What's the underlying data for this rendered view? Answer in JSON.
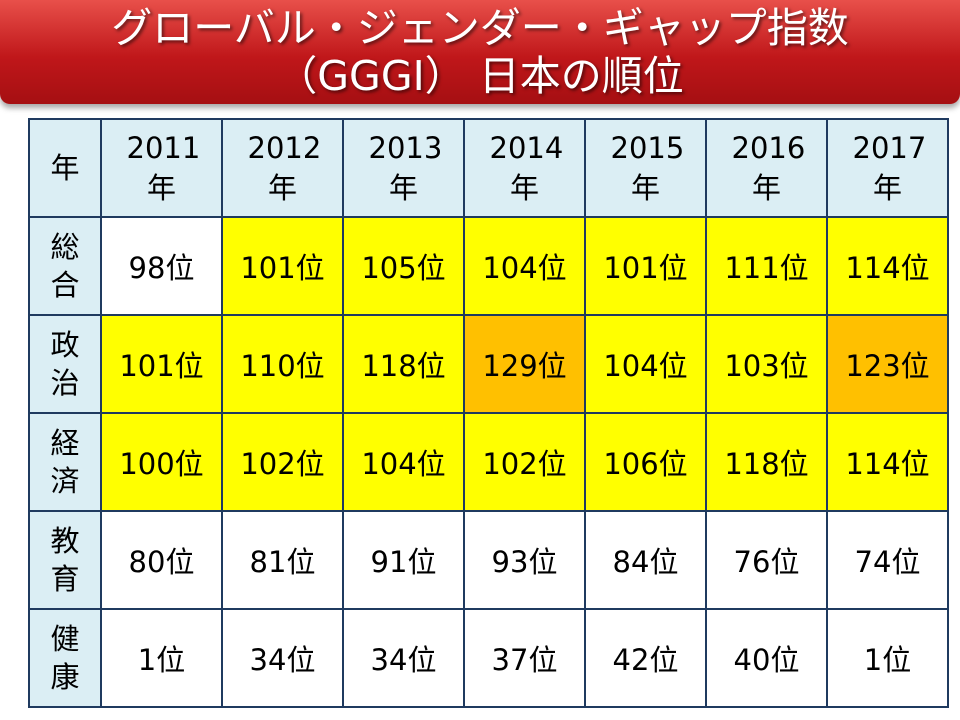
{
  "header": {
    "title_lines": [
      "グローバル・ジェンダー・ギャップ指数",
      "（GGGI） 日本の順位"
    ]
  },
  "table": {
    "header": {
      "label": "年",
      "columns": [
        "2011年",
        "2012年",
        "2013年",
        "2014年",
        "2015年",
        "2016年",
        "2017年"
      ]
    },
    "rows": [
      {
        "label": "総合",
        "cells": [
          {
            "text": "98位",
            "color": "#ffffff"
          },
          {
            "text": "101位",
            "color": "#ffff00"
          },
          {
            "text": "105位",
            "color": "#ffff00"
          },
          {
            "text": "104位",
            "color": "#ffff00"
          },
          {
            "text": "101位",
            "color": "#ffff00"
          },
          {
            "text": "111位",
            "color": "#ffff00"
          },
          {
            "text": "114位",
            "color": "#ffff00"
          }
        ]
      },
      {
        "label": "政治",
        "cells": [
          {
            "text": "101位",
            "color": "#ffff00"
          },
          {
            "text": "110位",
            "color": "#ffff00"
          },
          {
            "text": "118位",
            "color": "#ffff00"
          },
          {
            "text": "129位",
            "color": "#ffc000"
          },
          {
            "text": "104位",
            "color": "#ffff00"
          },
          {
            "text": "103位",
            "color": "#ffff00"
          },
          {
            "text": "123位",
            "color": "#ffc000"
          }
        ]
      },
      {
        "label": "経済",
        "cells": [
          {
            "text": "100位",
            "color": "#ffff00"
          },
          {
            "text": "102位",
            "color": "#ffff00"
          },
          {
            "text": "104位",
            "color": "#ffff00"
          },
          {
            "text": "102位",
            "color": "#ffff00"
          },
          {
            "text": "106位",
            "color": "#ffff00"
          },
          {
            "text": "118位",
            "color": "#ffff00"
          },
          {
            "text": "114位",
            "color": "#ffff00"
          }
        ]
      },
      {
        "label": "教育",
        "cells": [
          {
            "text": "80位",
            "color": "#ffffff"
          },
          {
            "text": "81位",
            "color": "#ffffff"
          },
          {
            "text": "91位",
            "color": "#ffffff"
          },
          {
            "text": "93位",
            "color": "#ffffff"
          },
          {
            "text": "84位",
            "color": "#ffffff"
          },
          {
            "text": "76位",
            "color": "#ffffff"
          },
          {
            "text": "74位",
            "color": "#ffffff"
          }
        ]
      },
      {
        "label": "健康",
        "cells": [
          {
            "text": "1位",
            "color": "#ffffff"
          },
          {
            "text": "34位",
            "color": "#ffffff"
          },
          {
            "text": "34位",
            "color": "#ffffff"
          },
          {
            "text": "37位",
            "color": "#ffffff"
          },
          {
            "text": "42位",
            "color": "#ffffff"
          },
          {
            "text": "40位",
            "color": "#ffffff"
          },
          {
            "text": "1位",
            "color": "#ffffff"
          }
        ]
      }
    ]
  }
}
